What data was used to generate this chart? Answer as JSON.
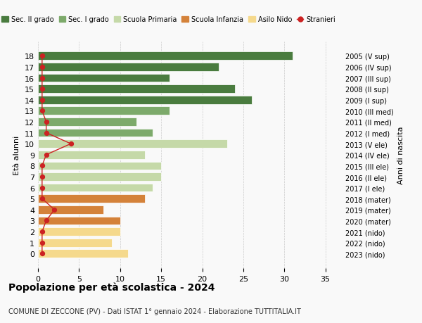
{
  "ages": [
    18,
    17,
    16,
    15,
    14,
    13,
    12,
    11,
    10,
    9,
    8,
    7,
    6,
    5,
    4,
    3,
    2,
    1,
    0
  ],
  "years": [
    "2005 (V sup)",
    "2006 (IV sup)",
    "2007 (III sup)",
    "2008 (II sup)",
    "2009 (I sup)",
    "2010 (III med)",
    "2011 (II med)",
    "2012 (I med)",
    "2013 (V ele)",
    "2014 (IV ele)",
    "2015 (III ele)",
    "2016 (II ele)",
    "2017 (I ele)",
    "2018 (mater)",
    "2019 (mater)",
    "2020 (mater)",
    "2021 (nido)",
    "2022 (nido)",
    "2023 (nido)"
  ],
  "bar_values": [
    31,
    22,
    16,
    24,
    26,
    16,
    12,
    14,
    23,
    13,
    15,
    15,
    14,
    13,
    8,
    10,
    10,
    9,
    11
  ],
  "bar_colors": [
    "#4a7c3f",
    "#4a7c3f",
    "#4a7c3f",
    "#4a7c3f",
    "#4a7c3f",
    "#7daa6b",
    "#7daa6b",
    "#7daa6b",
    "#c5d9a8",
    "#c5d9a8",
    "#c5d9a8",
    "#c5d9a8",
    "#c5d9a8",
    "#d4823a",
    "#d4823a",
    "#d4823a",
    "#f5d98c",
    "#f5d98c",
    "#f5d98c"
  ],
  "stranieri_x": [
    0.5,
    0.5,
    0.5,
    0.5,
    0.5,
    0.5,
    1,
    1,
    4,
    1,
    0.5,
    0.5,
    0.5,
    0.5,
    2,
    1,
    0.5,
    0.5,
    0.5
  ],
  "legend_labels": [
    "Sec. II grado",
    "Sec. I grado",
    "Scuola Primaria",
    "Scuola Infanzia",
    "Asilo Nido",
    "Stranieri"
  ],
  "legend_colors": [
    "#4a7c3f",
    "#7daa6b",
    "#c5d9a8",
    "#d4823a",
    "#f5d98c",
    "#cc2222"
  ],
  "title": "Popolazione per età scolastica - 2024",
  "subtitle": "COMUNE DI ZECCONE (PV) - Dati ISTAT 1° gennaio 2024 - Elaborazione TUTTITALIA.IT",
  "ylabel_left": "Età alunni",
  "ylabel_right": "Anni di nascita",
  "xlim": [
    0,
    37
  ],
  "background_color": "#f9f9f9",
  "grid_color": "#cccccc"
}
